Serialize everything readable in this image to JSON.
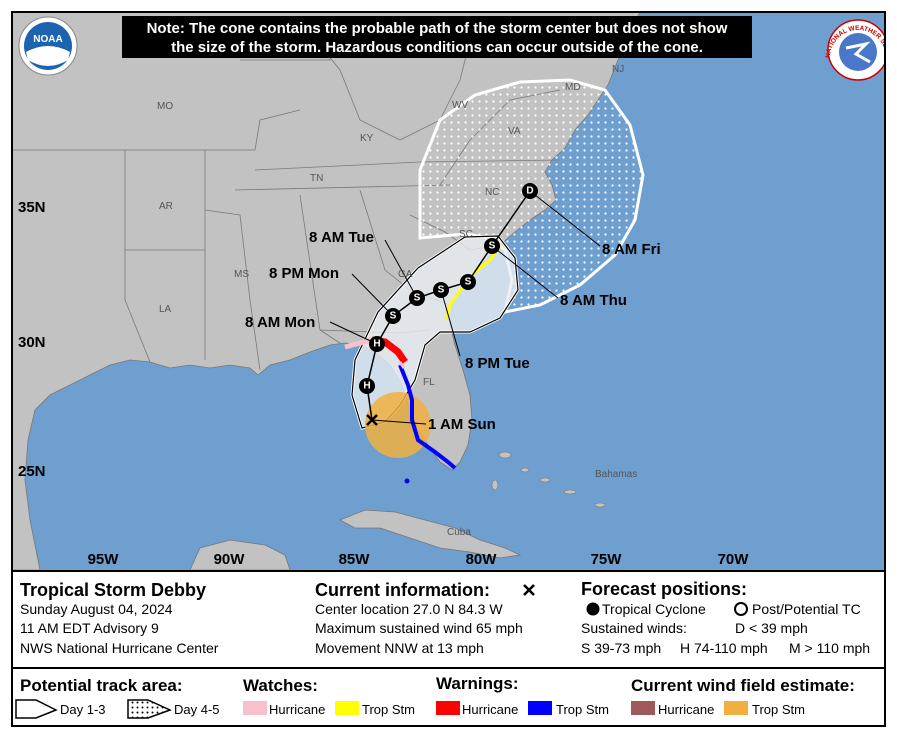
{
  "note": [
    "Note: The cone contains the probable path of the storm center but does not show",
    "the size of the storm. Hazardous conditions can occur outside of the cone."
  ],
  "logos": {
    "noaa": "NOAA",
    "nws": "NATIONAL WEATHER SERVICE"
  },
  "map": {
    "latitudes": [
      "35N",
      "30N",
      "25N"
    ],
    "longitudes": [
      "95W",
      "90W",
      "85W",
      "80W",
      "75W",
      "70W"
    ],
    "places": [
      "MO",
      "KY",
      "WV",
      "VA",
      "NC",
      "TN",
      "AR",
      "SC",
      "GA",
      "MS",
      "LA",
      "FL",
      "NJ",
      "MD",
      "Bahamas",
      "Cuba"
    ],
    "forecast_points": [
      "H",
      "H",
      "S",
      "S",
      "S",
      "S",
      "S",
      "D"
    ],
    "time_labels": [
      "1 AM Sun",
      "8 AM Mon",
      "8 PM Mon",
      "8 AM Tue",
      "8 PM Tue",
      "8 AM Thu",
      "8 AM Fri"
    ]
  },
  "info": {
    "storm_name": "Tropical Storm Debby",
    "date": "Sunday August 04, 2024",
    "advisory": "11 AM EDT Advisory 9",
    "source": "NWS National Hurricane Center",
    "current_title": "Current information:",
    "center": "Center location 27.0 N 84.3 W",
    "wind": "Maximum sustained wind 65 mph",
    "movement": "Movement NNW at 13 mph",
    "forecast_title": "Forecast positions:",
    "tropical": "Tropical Cyclone",
    "post": "Post/Potential TC",
    "sustained": "Sustained winds:",
    "d_wind": "D < 39 mph",
    "s_wind": "S 39-73 mph",
    "h_wind": "H 74-110 mph",
    "m_wind": "M > 110 mph"
  },
  "legend": {
    "track_title": "Potential track area:",
    "day13": "Day 1-3",
    "day45": "Day 4-5",
    "watches_title": "Watches:",
    "watch_hurricane": "Hurricane",
    "watch_ts": "Trop Stm",
    "warnings_title": "Warnings:",
    "warning_hurricane": "Hurricane",
    "warning_ts": "Trop Stm",
    "wind_title": "Current wind field estimate:",
    "wind_hurricane": "Hurricane",
    "wind_ts": "Trop Stm"
  }
}
